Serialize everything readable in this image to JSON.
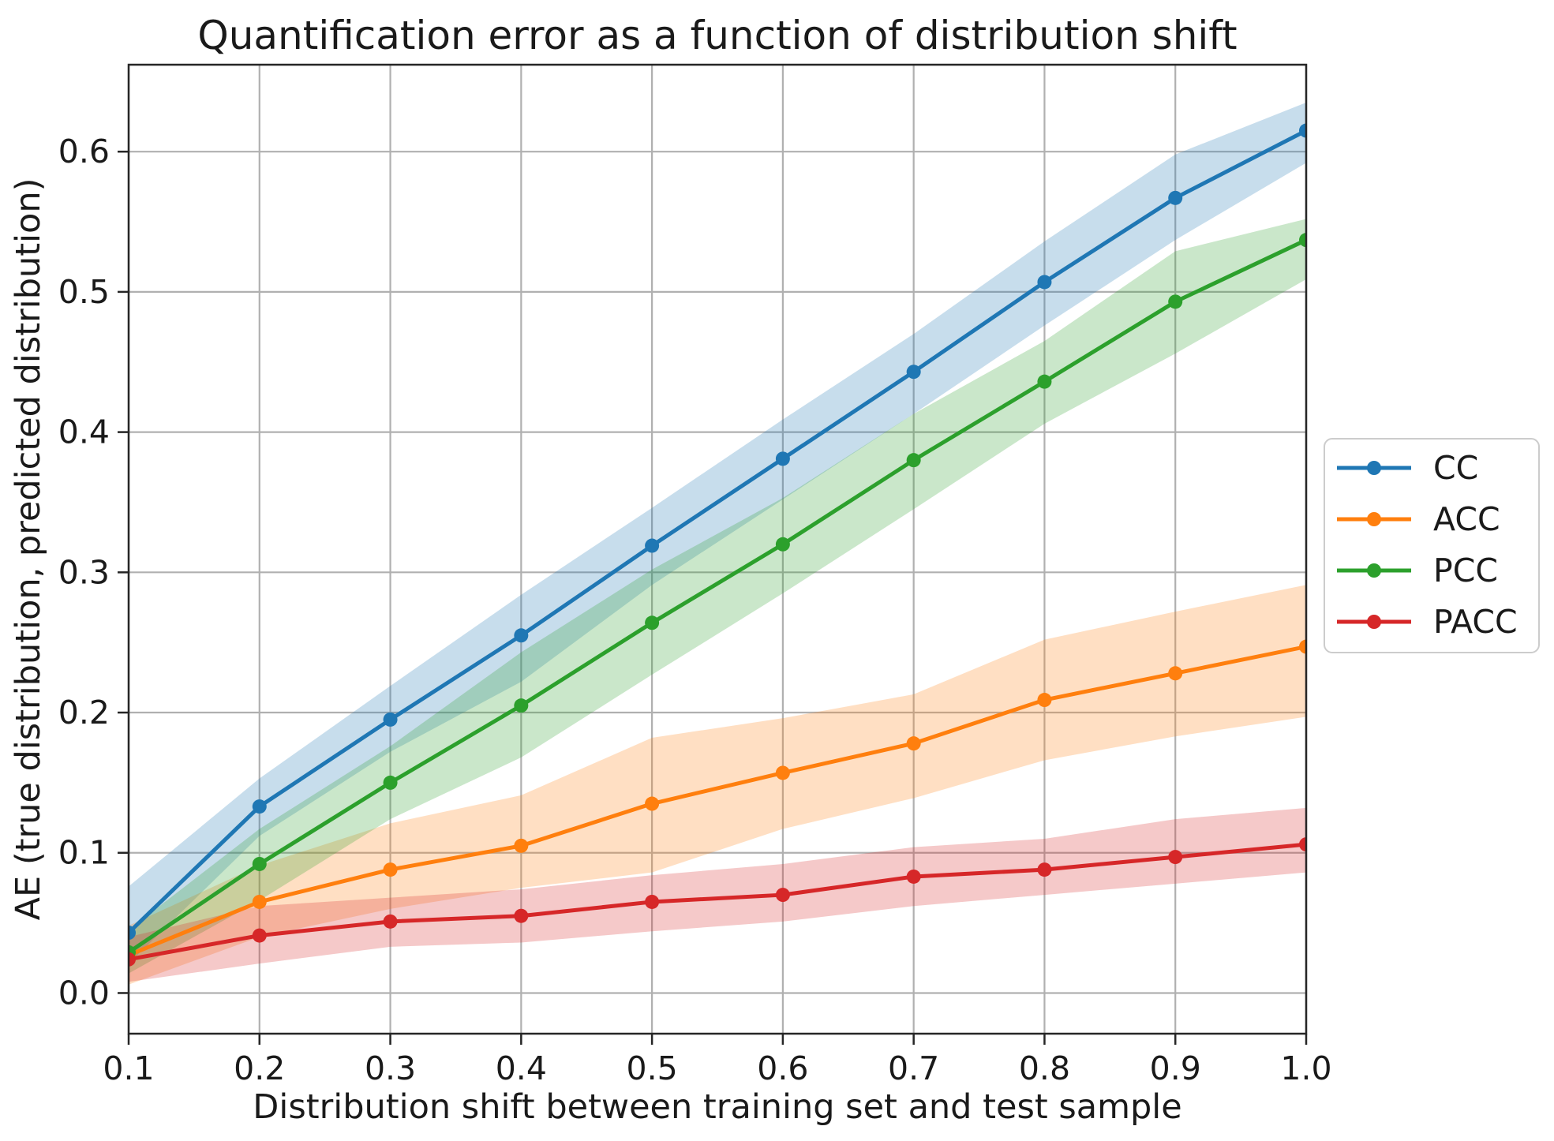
{
  "figure": {
    "title": "Quantification error as a function of distribution shift",
    "xlabel": "Distribution shift between training set and test sample",
    "ylabel": "AE (true distribution, predicted distribution)"
  },
  "chart_data": {
    "type": "line",
    "title": "Quantification error as a function of distribution shift",
    "xlabel": "Distribution shift between training set and test sample",
    "ylabel": "AE (true distribution, predicted distribution)",
    "x": [
      0.1,
      0.2,
      0.3,
      0.4,
      0.5,
      0.6,
      0.7,
      0.8,
      0.9,
      1.0
    ],
    "xticks": [
      "0.1",
      "0.2",
      "0.3",
      "0.4",
      "0.5",
      "0.6",
      "0.7",
      "0.8",
      "0.9",
      "1.0"
    ],
    "yticks": [
      "0.0",
      "0.1",
      "0.2",
      "0.3",
      "0.4",
      "0.5",
      "0.6"
    ],
    "ytick_values": [
      0.0,
      0.1,
      0.2,
      0.3,
      0.4,
      0.5,
      0.6
    ],
    "xlim": [
      0.1,
      1.0
    ],
    "ylim": [
      -0.029,
      0.662
    ],
    "grid": true,
    "grid_color": "#b0b0b0",
    "band_opacity": 0.25,
    "legend_position": "center-right-outside",
    "series": [
      {
        "name": "CC",
        "color": "#1f77b4",
        "values": [
          0.043,
          0.133,
          0.195,
          0.255,
          0.319,
          0.381,
          0.443,
          0.507,
          0.567,
          0.615
        ],
        "band_lower": [
          0.021,
          0.112,
          0.172,
          0.222,
          0.291,
          0.352,
          0.413,
          0.476,
          0.537,
          0.592
        ],
        "band_upper": [
          0.076,
          0.153,
          0.219,
          0.284,
          0.346,
          0.409,
          0.47,
          0.536,
          0.598,
          0.635
        ]
      },
      {
        "name": "ACC",
        "color": "#ff7f0e",
        "values": [
          0.027,
          0.065,
          0.088,
          0.105,
          0.135,
          0.157,
          0.178,
          0.209,
          0.228,
          0.247
        ],
        "band_lower": [
          0.006,
          0.04,
          0.06,
          0.075,
          0.086,
          0.117,
          0.139,
          0.166,
          0.183,
          0.197
        ],
        "band_upper": [
          0.048,
          0.091,
          0.121,
          0.141,
          0.182,
          0.196,
          0.213,
          0.252,
          0.272,
          0.291
        ]
      },
      {
        "name": "PCC",
        "color": "#2ca02c",
        "values": [
          0.029,
          0.092,
          0.15,
          0.205,
          0.264,
          0.32,
          0.38,
          0.436,
          0.493,
          0.537
        ],
        "band_lower": [
          0.014,
          0.066,
          0.124,
          0.168,
          0.227,
          0.285,
          0.345,
          0.406,
          0.456,
          0.509
        ],
        "band_upper": [
          0.045,
          0.117,
          0.176,
          0.243,
          0.302,
          0.353,
          0.413,
          0.465,
          0.529,
          0.552
        ]
      },
      {
        "name": "PACC",
        "color": "#d62728",
        "values": [
          0.024,
          0.041,
          0.051,
          0.055,
          0.065,
          0.07,
          0.083,
          0.088,
          0.097,
          0.106
        ],
        "band_lower": [
          0.008,
          0.021,
          0.033,
          0.036,
          0.044,
          0.051,
          0.062,
          0.07,
          0.078,
          0.086
        ],
        "band_upper": [
          0.04,
          0.062,
          0.068,
          0.074,
          0.084,
          0.092,
          0.104,
          0.11,
          0.124,
          0.132
        ]
      }
    ]
  }
}
